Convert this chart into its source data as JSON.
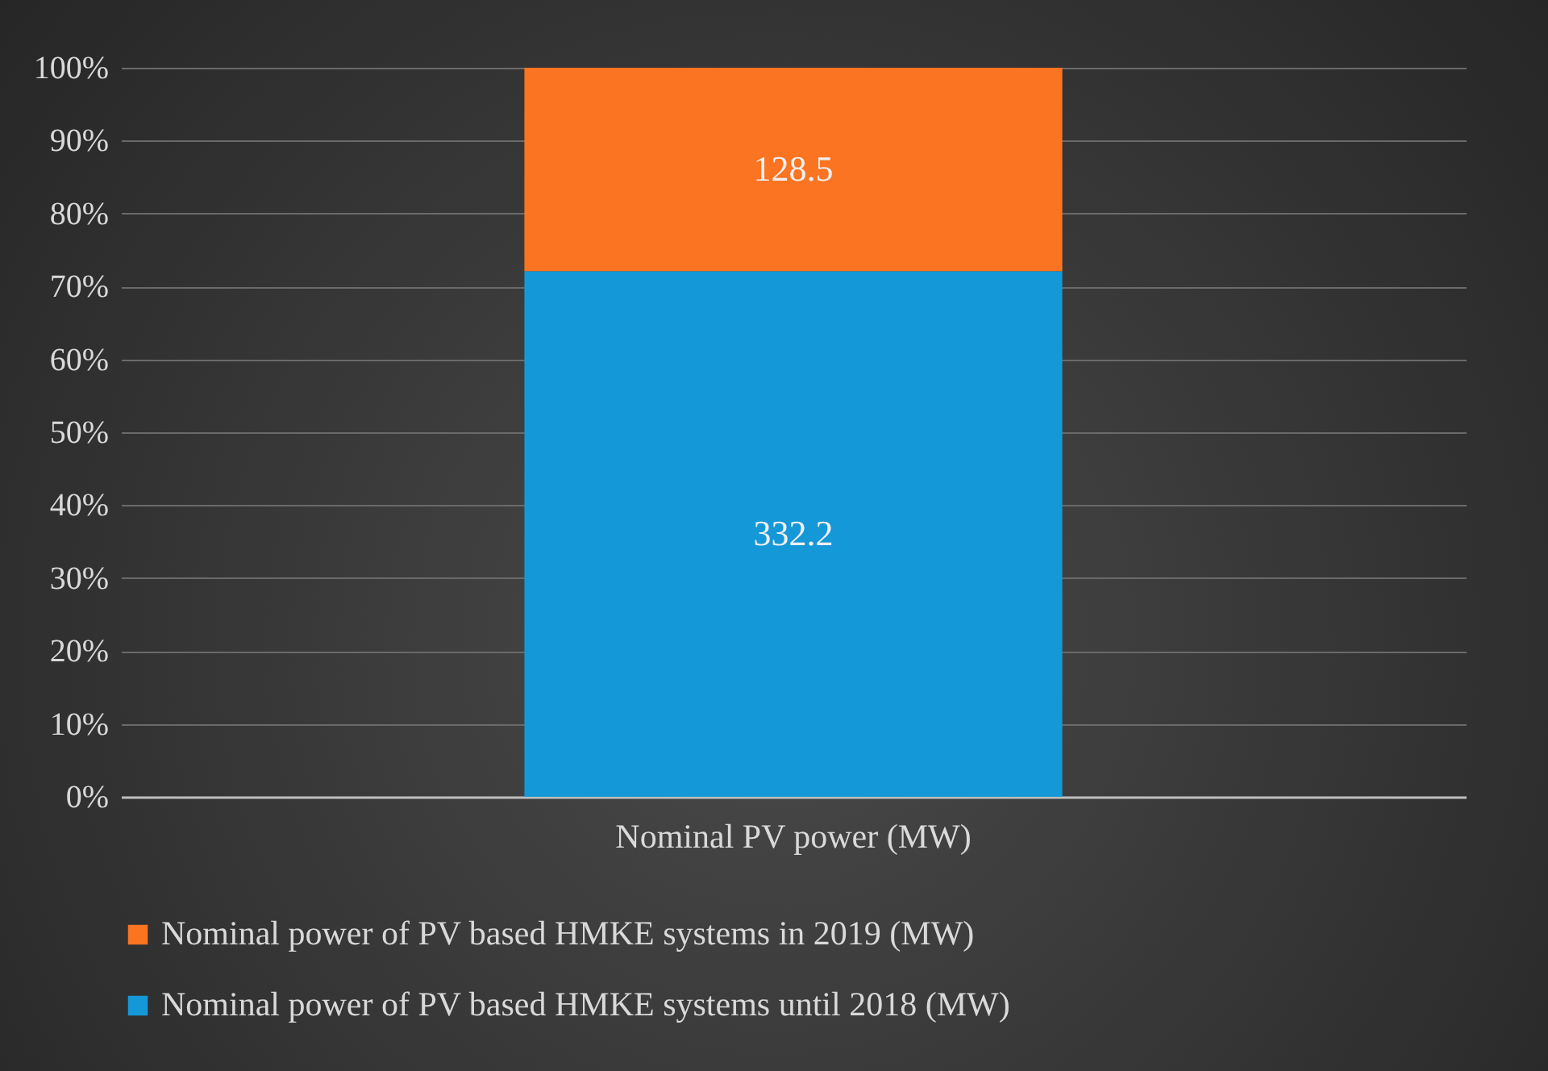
{
  "chart_data": {
    "type": "bar",
    "stacked": true,
    "categories": [
      "Nominal PV power (MW)"
    ],
    "series": [
      {
        "name": "Nominal power of PV based HMKE systems until 2018 (MW)",
        "color": "#1598d8",
        "values": [
          72.1
        ]
      },
      {
        "name": "Nominal power of PV based HMKE systems in 2019 (MW)",
        "color": "#fb7421",
        "values": [
          27.9
        ]
      }
    ],
    "annotations": [
      "332.2",
      "128.5"
    ],
    "ylim": [
      0,
      100
    ],
    "yticks": [
      {
        "value": 0,
        "label": "0%"
      },
      {
        "value": 10,
        "label": "10%"
      },
      {
        "value": 20,
        "label": "20%"
      },
      {
        "value": 30,
        "label": "30%"
      },
      {
        "value": 40,
        "label": "40%"
      },
      {
        "value": 50,
        "label": "50%"
      },
      {
        "value": 60,
        "label": "60%"
      },
      {
        "value": 70,
        "label": "70%"
      },
      {
        "value": 80,
        "label": "80%"
      },
      {
        "value": 90,
        "label": "90%"
      },
      {
        "value": 100,
        "label": "100%"
      }
    ],
    "grid": true,
    "legend": "bottom"
  }
}
